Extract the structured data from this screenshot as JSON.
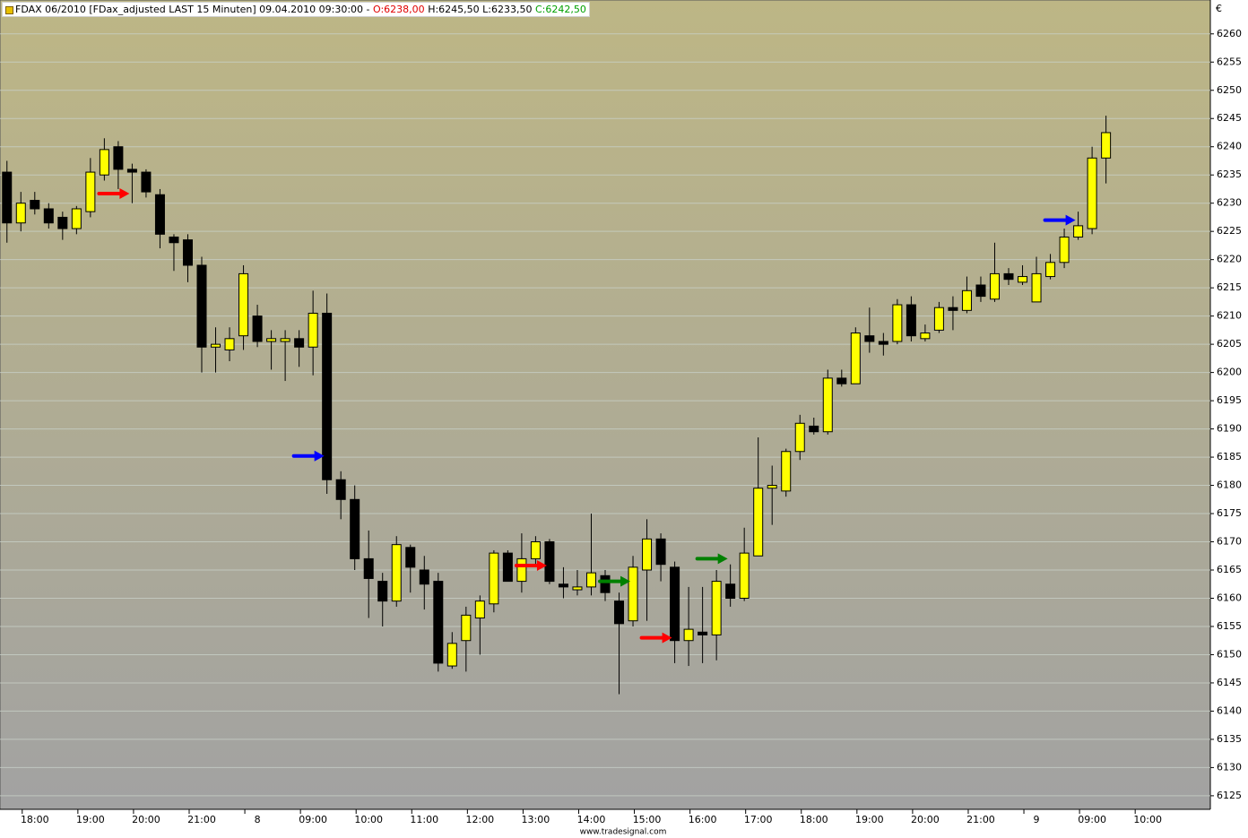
{
  "chart_data": {
    "type": "candlestick",
    "title": "FDAX 06/2010 [FDax_adjusted LAST 15 Minuten] 09.04.2010 09:30:00 -",
    "open_label": "O:6238,00",
    "high_low_label": "H:6245,50 L:6233,50",
    "close_label": "C:6242,50",
    "currency": "€",
    "footer": "www.tradesignal.com",
    "up_color": "#ffff00",
    "down_color": "#000000",
    "grid": true,
    "ylim": [
      6122.6,
      6266
    ],
    "yticks": [
      6125,
      6130,
      6135,
      6140,
      6145,
      6150,
      6155,
      6160,
      6165,
      6170,
      6175,
      6180,
      6185,
      6190,
      6195,
      6200,
      6205,
      6210,
      6215,
      6220,
      6225,
      6230,
      6235,
      6240,
      6245,
      6250,
      6255,
      6260
    ],
    "categories": [
      null,
      null,
      "18:00",
      null,
      null,
      null,
      "19:00",
      null,
      null,
      null,
      "20:00",
      null,
      null,
      null,
      "21:00",
      null,
      null,
      null,
      "8",
      null,
      null,
      null,
      "09:00",
      null,
      null,
      null,
      "10:00",
      null,
      null,
      null,
      "11:00",
      null,
      null,
      null,
      "12:00",
      null,
      null,
      null,
      "13:00",
      null,
      null,
      null,
      "14:00",
      null,
      null,
      null,
      "15:00",
      null,
      null,
      null,
      "16:00",
      null,
      null,
      null,
      "17:00",
      null,
      null,
      null,
      "18:00",
      null,
      null,
      null,
      "19:00",
      null,
      null,
      null,
      "20:00",
      null,
      null,
      null,
      "21:00",
      null,
      null,
      null,
      "9",
      null,
      null,
      null,
      "09:00",
      null,
      null,
      null,
      "10:00",
      null,
      null,
      null,
      null
    ],
    "open": [
      6235.5,
      6226.5,
      6230.5,
      6229,
      6227.5,
      6225.5,
      6228.5,
      6235,
      6240,
      6236,
      6235.5,
      6231.5,
      6224,
      6223.5,
      6219,
      6204.5,
      6204,
      6206.5,
      6210,
      6205.5,
      6205.5,
      6206,
      6204.5,
      6210.5,
      6181,
      6177.5,
      6167,
      6163,
      6159.5,
      6169,
      6165,
      6163,
      6148,
      6152.5,
      6156.5,
      6159,
      6168,
      6163,
      6167,
      6170,
      6162.5,
      6161.5,
      6162,
      6164,
      6159.5,
      6156,
      6165,
      6170.5,
      6165.5,
      6152.5,
      6154,
      6153.5,
      6162.5,
      6160,
      6167.5,
      6179.5,
      6179,
      6186,
      6190.5,
      6189.5,
      6199,
      6198,
      6206.5,
      6205.5,
      6205.5,
      6212,
      6206,
      6207.5,
      6211.5,
      6211,
      6215.5,
      6213,
      6217.5,
      6216,
      6212.5,
      6217,
      6219.5,
      6224,
      6225.5,
      6238,
      null,
      null,
      null,
      null,
      null,
      null,
      null
    ],
    "high": [
      6237.5,
      6232,
      6232,
      6230,
      6228.5,
      6229.5,
      6238,
      6241.5,
      6241,
      6237,
      6236,
      6232.5,
      6224.5,
      6224.5,
      6220.5,
      6208,
      6208,
      6219,
      6212,
      6207.5,
      6207.5,
      6207.5,
      6214.5,
      6214,
      6182.5,
      6180,
      6172,
      6164.5,
      6171,
      6169.5,
      6167.5,
      6164.5,
      6154,
      6158.5,
      6160.5,
      6168.5,
      6168.5,
      6171.5,
      6171,
      6170.5,
      6165.5,
      6165,
      6175,
      6165,
      6161,
      6167.5,
      6174,
      6171.5,
      6166.5,
      6162,
      6162,
      6165,
      6166,
      6172.5,
      6188.5,
      6183.5,
      6186.5,
      6192.5,
      6192,
      6200.5,
      6200.5,
      6208,
      6211.5,
      6207,
      6213,
      6213.5,
      6208.5,
      6212.5,
      6213.5,
      6217,
      6217,
      6223,
      6218.5,
      6219,
      6220.5,
      6221,
      6225.5,
      6228.5,
      6240,
      6245.5,
      null,
      null,
      null,
      null,
      null,
      null,
      null
    ],
    "low": [
      6223,
      6225,
      6228,
      6225.5,
      6223.5,
      6224.5,
      6227.5,
      6234,
      6232.5,
      6230,
      6231,
      6222,
      6218,
      6216,
      6200,
      6200,
      6202,
      6204,
      6204.5,
      6200.5,
      6198.5,
      6201,
      6199.5,
      6178.5,
      6174,
      6165,
      6156.5,
      6155,
      6158.5,
      6161,
      6158,
      6147,
      6147.5,
      6147,
      6150,
      6157.5,
      6163,
      6161,
      6165.5,
      6162.5,
      6160,
      6160.5,
      6160.5,
      6159.5,
      6143,
      6155,
      6156,
      6163,
      6148.5,
      6148,
      6148.5,
      6149,
      6158.5,
      6159.5,
      6167.5,
      6173,
      6178,
      6184.5,
      6189,
      6189,
      6197.5,
      6198,
      6203.5,
      6203,
      6205,
      6205.5,
      6205.5,
      6207,
      6207.5,
      6210.5,
      6212.5,
      6212.5,
      6215.5,
      6215.5,
      6212.5,
      6216.5,
      6218.5,
      6223.5,
      6224.5,
      6233.5,
      null,
      null,
      null,
      null,
      null,
      null,
      null
    ],
    "close": [
      6226.5,
      6230,
      6229,
      6226.5,
      6225.5,
      6229,
      6235.5,
      6239.5,
      6236,
      6235.5,
      6232,
      6224.5,
      6223,
      6219,
      6204.5,
      6205,
      6206,
      6217.5,
      6205.5,
      6206,
      6206,
      6204.5,
      6210.5,
      6181,
      6177.5,
      6167,
      6163.5,
      6159.5,
      6169.5,
      6165.5,
      6162.5,
      6148.5,
      6152,
      6157,
      6159.5,
      6168,
      6163,
      6167,
      6170,
      6163,
      6162,
      6162,
      6164.5,
      6161,
      6155.5,
      6165.5,
      6170.5,
      6166,
      6152.5,
      6154.5,
      6153.5,
      6163,
      6160,
      6168,
      6179.5,
      6180,
      6186,
      6191,
      6189.5,
      6199,
      6198,
      6207,
      6205.5,
      6205,
      6212,
      6206.5,
      6207,
      6211.5,
      6211,
      6214.5,
      6213.5,
      6217.5,
      6216.5,
      6217,
      6217.5,
      6219.5,
      6224,
      6226,
      6238,
      6242.5,
      null,
      null,
      null,
      null,
      null,
      null,
      null
    ],
    "markers": [
      {
        "color": "#ff0000",
        "values": [
          null,
          null,
          null,
          null,
          null,
          null,
          null,
          null,
          null,
          6231.7,
          null,
          null,
          null,
          null,
          null,
          null,
          null,
          null,
          null,
          null,
          null,
          null,
          null,
          null,
          null,
          null,
          null,
          null,
          null,
          null,
          null,
          null,
          null,
          null,
          null,
          null,
          null,
          null,
          null,
          6165.8,
          null,
          null,
          null,
          null,
          null,
          null,
          null,
          null,
          6153,
          null,
          null,
          null,
          null,
          null,
          null,
          null,
          null,
          null,
          null,
          null,
          null,
          null,
          null,
          null,
          null,
          null,
          null,
          null,
          null,
          null,
          null,
          null,
          null,
          null,
          null,
          null,
          null,
          null,
          null,
          null,
          null,
          null,
          null,
          null,
          null,
          null,
          null
        ]
      },
      {
        "color": "#008000",
        "values": [
          null,
          null,
          null,
          null,
          null,
          null,
          null,
          null,
          null,
          null,
          null,
          null,
          null,
          null,
          null,
          null,
          null,
          null,
          null,
          null,
          null,
          null,
          null,
          null,
          null,
          null,
          null,
          null,
          null,
          null,
          null,
          null,
          null,
          null,
          null,
          null,
          null,
          null,
          null,
          null,
          null,
          null,
          null,
          null,
          null,
          6163,
          null,
          null,
          null,
          null,
          null,
          null,
          6167,
          null,
          null,
          null,
          null,
          null,
          null,
          null,
          null,
          null,
          null,
          null,
          null,
          null,
          null,
          null,
          null,
          null,
          null,
          null,
          null,
          null,
          null,
          null,
          null,
          null,
          null,
          null,
          null,
          null,
          null,
          null,
          null,
          null,
          null
        ]
      },
      {
        "color": "#0000ff",
        "values": [
          null,
          null,
          null,
          null,
          null,
          null,
          null,
          null,
          null,
          null,
          null,
          null,
          null,
          null,
          null,
          null,
          null,
          null,
          null,
          null,
          null,
          null,
          null,
          6185.2,
          null,
          null,
          null,
          null,
          null,
          null,
          null,
          null,
          null,
          null,
          null,
          null,
          null,
          null,
          null,
          null,
          null,
          null,
          null,
          null,
          null,
          null,
          null,
          null,
          null,
          null,
          null,
          null,
          null,
          null,
          null,
          null,
          null,
          null,
          null,
          null,
          null,
          null,
          null,
          null,
          null,
          null,
          null,
          null,
          null,
          null,
          null,
          null,
          null,
          null,
          null,
          null,
          null,
          6227,
          null,
          null,
          null,
          null,
          null,
          null,
          null,
          null,
          null
        ]
      }
    ]
  }
}
